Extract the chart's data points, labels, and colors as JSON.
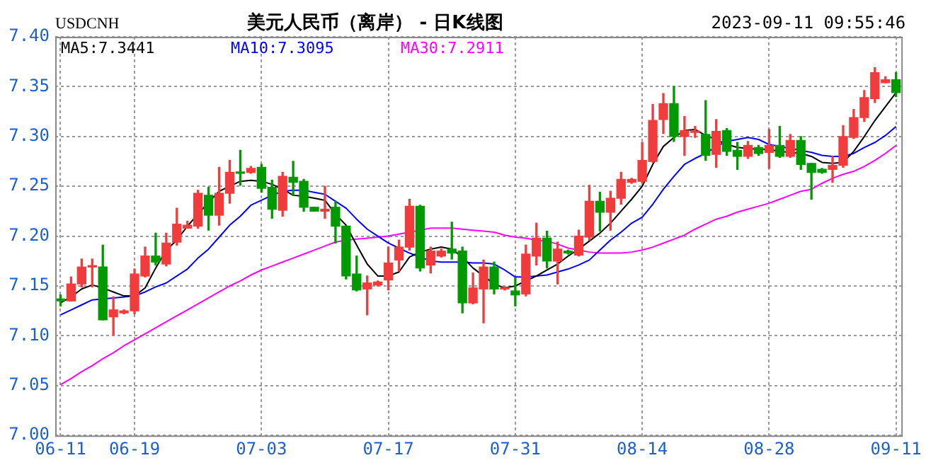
{
  "chart_data": {
    "type": "candlestick",
    "title": "美元人民币（离岸） - 日K线图",
    "annotations": [
      "USDCNH",
      "2023-09-11 09:55:46"
    ],
    "categories": [
      "06-11",
      null,
      null,
      null,
      null,
      null,
      null,
      "06-19",
      null,
      null,
      null,
      null,
      null,
      null,
      null,
      null,
      null,
      null,
      null,
      "07-03",
      null,
      null,
      null,
      null,
      null,
      null,
      null,
      null,
      null,
      null,
      null,
      "07-17",
      null,
      null,
      null,
      null,
      null,
      null,
      null,
      null,
      null,
      null,
      null,
      "07-31",
      null,
      null,
      null,
      null,
      null,
      null,
      null,
      null,
      null,
      null,
      null,
      "08-14",
      null,
      null,
      null,
      null,
      null,
      null,
      null,
      null,
      null,
      null,
      null,
      "08-28",
      null,
      null,
      null,
      null,
      null,
      null,
      null,
      null,
      null,
      null,
      null,
      "09-11"
    ],
    "ohlc": [
      [
        7.137,
        7.141,
        7.13,
        7.135
      ],
      [
        7.135,
        7.159,
        7.135,
        7.152
      ],
      [
        7.152,
        7.177,
        7.149,
        7.169
      ],
      [
        7.169,
        7.177,
        7.149,
        7.17
      ],
      [
        7.169,
        7.191,
        7.116,
        7.116
      ],
      [
        7.119,
        7.139,
        7.101,
        7.126
      ],
      [
        7.123,
        7.126,
        7.122,
        7.125
      ],
      [
        7.125,
        7.167,
        7.122,
        7.162
      ],
      [
        7.16,
        7.189,
        7.159,
        7.18
      ],
      [
        7.18,
        7.203,
        7.171,
        7.174
      ],
      [
        7.172,
        7.203,
        7.17,
        7.193
      ],
      [
        7.194,
        7.228,
        7.191,
        7.212
      ],
      [
        7.208,
        7.215,
        7.208,
        7.211
      ],
      [
        7.21,
        7.246,
        7.208,
        7.243
      ],
      [
        7.241,
        7.249,
        7.206,
        7.221
      ],
      [
        7.221,
        7.269,
        7.211,
        7.243
      ],
      [
        7.243,
        7.276,
        7.233,
        7.264
      ],
      [
        7.264,
        7.286,
        7.251,
        7.263
      ],
      [
        7.264,
        7.27,
        7.263,
        7.268
      ],
      [
        7.269,
        7.272,
        7.244,
        7.248
      ],
      [
        7.249,
        7.256,
        7.218,
        7.227
      ],
      [
        7.226,
        7.264,
        7.22,
        7.26
      ],
      [
        7.259,
        7.275,
        7.241,
        7.254
      ],
      [
        7.255,
        7.257,
        7.225,
        7.229
      ],
      [
        7.229,
        7.229,
        7.225,
        7.225
      ],
      [
        7.225,
        7.25,
        7.218,
        7.227
      ],
      [
        7.229,
        7.235,
        7.193,
        7.21
      ],
      [
        7.21,
        7.21,
        7.157,
        7.16
      ],
      [
        7.162,
        7.18,
        7.145,
        7.146
      ],
      [
        7.147,
        7.16,
        7.121,
        7.153
      ],
      [
        7.151,
        7.155,
        7.15,
        7.154
      ],
      [
        7.156,
        7.189,
        7.146,
        7.173
      ],
      [
        7.176,
        7.196,
        7.165,
        7.189
      ],
      [
        7.189,
        7.237,
        7.186,
        7.23
      ],
      [
        7.23,
        7.231,
        7.165,
        7.168
      ],
      [
        7.171,
        7.189,
        7.163,
        7.185
      ],
      [
        7.18,
        7.187,
        7.179,
        7.185
      ],
      [
        7.187,
        7.214,
        7.177,
        7.183
      ],
      [
        7.185,
        7.189,
        7.123,
        7.133
      ],
      [
        7.133,
        7.163,
        7.132,
        7.148
      ],
      [
        7.147,
        7.176,
        7.113,
        7.169
      ],
      [
        7.169,
        7.174,
        7.142,
        7.147
      ],
      [
        7.147,
        7.149,
        7.146,
        7.148
      ],
      [
        7.145,
        7.158,
        7.13,
        7.141
      ],
      [
        7.142,
        7.191,
        7.14,
        7.182
      ],
      [
        7.18,
        7.213,
        7.171,
        7.198
      ],
      [
        7.198,
        7.205,
        7.168,
        7.175
      ],
      [
        7.175,
        7.194,
        7.152,
        7.187
      ],
      [
        7.185,
        7.186,
        7.182,
        7.183
      ],
      [
        7.181,
        7.206,
        7.18,
        7.2
      ],
      [
        7.199,
        7.251,
        7.196,
        7.235
      ],
      [
        7.235,
        7.244,
        7.205,
        7.224
      ],
      [
        7.224,
        7.245,
        7.206,
        7.238
      ],
      [
        7.238,
        7.264,
        7.232,
        7.257
      ],
      [
        7.254,
        7.258,
        7.253,
        7.257
      ],
      [
        7.255,
        7.294,
        7.253,
        7.276
      ],
      [
        7.275,
        7.332,
        7.274,
        7.316
      ],
      [
        7.317,
        7.343,
        7.303,
        7.333
      ],
      [
        7.333,
        7.35,
        7.295,
        7.3
      ],
      [
        7.3,
        7.32,
        7.281,
        7.306
      ],
      [
        7.304,
        7.31,
        7.299,
        7.305
      ],
      [
        7.302,
        7.336,
        7.276,
        7.281
      ],
      [
        7.282,
        7.317,
        7.269,
        7.305
      ],
      [
        7.306,
        7.308,
        7.281,
        7.285
      ],
      [
        7.286,
        7.294,
        7.267,
        7.28
      ],
      [
        7.28,
        7.295,
        7.278,
        7.291
      ],
      [
        7.289,
        7.291,
        7.281,
        7.283
      ],
      [
        7.284,
        7.307,
        7.268,
        7.291
      ],
      [
        7.291,
        7.31,
        7.279,
        7.28
      ],
      [
        7.28,
        7.302,
        7.279,
        7.296
      ],
      [
        7.296,
        7.3,
        7.267,
        7.272
      ],
      [
        7.273,
        7.273,
        7.237,
        7.264
      ],
      [
        7.267,
        7.268,
        7.263,
        7.264
      ],
      [
        7.267,
        7.28,
        7.254,
        7.271
      ],
      [
        7.271,
        7.311,
        7.269,
        7.3
      ],
      [
        7.299,
        7.327,
        7.298,
        7.319
      ],
      [
        7.319,
        7.346,
        7.315,
        7.339
      ],
      [
        7.338,
        7.369,
        7.334,
        7.364
      ],
      [
        7.354,
        7.36,
        7.354,
        7.357
      ],
      [
        7.357,
        7.364,
        7.34,
        7.344
      ]
    ],
    "colors": [
      "#009900",
      "#f03c3c",
      "#f03c3c",
      "#f03c3c",
      "#009900",
      "#f03c3c",
      "#f03c3c",
      "#f03c3c",
      "#f03c3c",
      "#009900",
      "#f03c3c",
      "#f03c3c",
      "#f03c3c",
      "#f03c3c",
      "#009900",
      "#f03c3c",
      "#f03c3c",
      "#009900",
      "#f03c3c",
      "#009900",
      "#009900",
      "#f03c3c",
      "#009900",
      "#009900",
      "#009900",
      "#f03c3c",
      "#009900",
      "#009900",
      "#009900",
      "#f03c3c",
      "#f03c3c",
      "#f03c3c",
      "#f03c3c",
      "#f03c3c",
      "#009900",
      "#f03c3c",
      "#f03c3c",
      "#009900",
      "#009900",
      "#f03c3c",
      "#f03c3c",
      "#009900",
      "#f03c3c",
      "#009900",
      "#f03c3c",
      "#f03c3c",
      "#009900",
      "#f03c3c",
      "#009900",
      "#f03c3c",
      "#f03c3c",
      "#009900",
      "#f03c3c",
      "#f03c3c",
      "#f03c3c",
      "#f03c3c",
      "#f03c3c",
      "#f03c3c",
      "#009900",
      "#f03c3c",
      "#f03c3c",
      "#009900",
      "#f03c3c",
      "#009900",
      "#009900",
      "#f03c3c",
      "#009900",
      "#f03c3c",
      "#009900",
      "#f03c3c",
      "#009900",
      "#009900",
      "#009900",
      "#f03c3c",
      "#f03c3c",
      "#f03c3c",
      "#f03c3c",
      "#f03c3c",
      "#f03c3c",
      "#009900"
    ],
    "series": [
      {
        "type": "line",
        "name": "MA5:7.3441",
        "color": "#000000",
        "values": [
          7.133,
          7.139,
          7.147,
          7.151,
          7.148,
          7.144,
          7.14,
          7.14,
          7.148,
          7.168,
          7.186,
          7.196,
          7.21,
          7.222,
          7.234,
          7.245,
          7.25,
          7.255,
          7.256,
          7.255,
          7.252,
          7.247,
          7.241,
          7.24,
          7.238,
          7.236,
          7.222,
          7.211,
          7.191,
          7.172,
          7.16,
          7.16,
          7.164,
          7.179,
          7.184,
          7.187,
          7.189,
          7.187,
          7.179,
          7.168,
          7.16,
          7.152,
          7.148,
          7.15,
          7.155,
          7.16,
          7.166,
          7.172,
          7.18,
          7.187,
          7.195,
          7.203,
          7.213,
          7.225,
          7.237,
          7.25,
          7.272,
          7.29,
          7.299,
          7.306,
          7.307,
          7.301,
          7.297,
          7.292,
          7.289,
          7.288,
          7.287,
          7.287,
          7.285,
          7.284,
          7.283,
          7.28,
          7.274,
          7.273,
          7.274,
          7.285,
          7.3,
          7.316,
          7.33,
          7.344
        ]
      },
      {
        "type": "line",
        "name": "MA10:7.3095",
        "color": "#0000ff",
        "values": [
          7.121,
          7.126,
          7.131,
          7.136,
          7.137,
          7.138,
          7.139,
          7.14,
          7.144,
          7.149,
          7.153,
          7.16,
          7.167,
          7.178,
          7.187,
          7.199,
          7.211,
          7.22,
          7.231,
          7.236,
          7.241,
          7.245,
          7.246,
          7.246,
          7.244,
          7.242,
          7.235,
          7.228,
          7.217,
          7.207,
          7.2,
          7.193,
          7.188,
          7.183,
          7.179,
          7.175,
          7.174,
          7.174,
          7.174,
          7.173,
          7.173,
          7.172,
          7.166,
          7.159,
          7.159,
          7.16,
          7.161,
          7.164,
          7.167,
          7.171,
          7.176,
          7.186,
          7.196,
          7.204,
          7.213,
          7.219,
          7.232,
          7.247,
          7.26,
          7.272,
          7.278,
          7.283,
          7.29,
          7.295,
          7.297,
          7.299,
          7.297,
          7.292,
          7.29,
          7.288,
          7.286,
          7.284,
          7.281,
          7.28,
          7.28,
          7.283,
          7.289,
          7.294,
          7.301,
          7.31
        ]
      },
      {
        "type": "line",
        "name": "MA30:7.2911",
        "color": "#ff00ff",
        "values": [
          7.051,
          7.057,
          7.064,
          7.07,
          7.077,
          7.083,
          7.09,
          7.096,
          7.102,
          7.108,
          7.114,
          7.12,
          7.126,
          7.132,
          7.138,
          7.144,
          7.15,
          7.155,
          7.161,
          7.166,
          7.17,
          7.174,
          7.178,
          7.182,
          7.186,
          7.19,
          7.194,
          7.196,
          7.197,
          7.198,
          7.199,
          7.2,
          7.202,
          7.204,
          7.206,
          7.208,
          7.208,
          7.208,
          7.207,
          7.206,
          7.205,
          7.204,
          7.201,
          7.199,
          7.198,
          7.196,
          7.195,
          7.192,
          7.188,
          7.186,
          7.184,
          7.183,
          7.183,
          7.183,
          7.184,
          7.186,
          7.189,
          7.193,
          7.197,
          7.201,
          7.207,
          7.212,
          7.217,
          7.22,
          7.224,
          7.227,
          7.23,
          7.233,
          7.237,
          7.241,
          7.245,
          7.247,
          7.253,
          7.258,
          7.262,
          7.265,
          7.27,
          7.276,
          7.283,
          7.291
        ]
      }
    ],
    "ylim": [
      7.0,
      7.4
    ],
    "yticks": [
      {
        "value": 7.0,
        "label": "7.00"
      },
      {
        "value": 7.05,
        "label": "7.05"
      },
      {
        "value": 7.1,
        "label": "7.10"
      },
      {
        "value": 7.15,
        "label": "7.15"
      },
      {
        "value": 7.2,
        "label": "7.20"
      },
      {
        "value": 7.25,
        "label": "7.25"
      },
      {
        "value": 7.3,
        "label": "7.30"
      },
      {
        "value": 7.35,
        "label": "7.35"
      },
      {
        "value": 7.4,
        "label": "7.40"
      }
    ],
    "grid": true,
    "legend": "top left",
    "marker": "none",
    "line_style": "solid"
  }
}
